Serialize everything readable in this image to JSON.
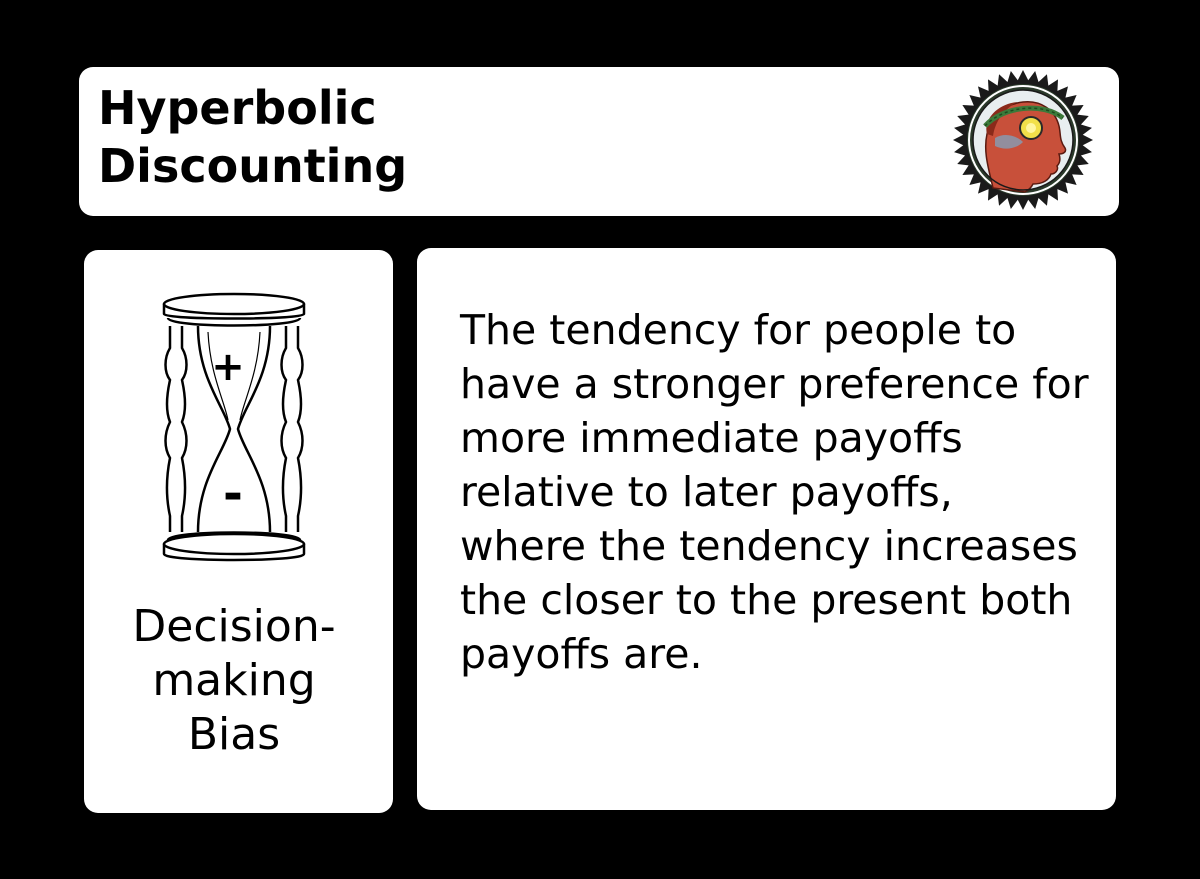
{
  "card": {
    "title_line1": "Hyperbolic",
    "title_line2": "Discounting",
    "category_line1": "Decision-",
    "category_line2": "making",
    "category_line3": "Bias",
    "description": "The tendency for people to have a stronger preference for more immediate payoffs relative to later payoffs, where the tendency increases the closer to the present both payoffs are."
  },
  "icons": {
    "logo": "laurel-head-seal-icon",
    "category": "hourglass-icon"
  },
  "hourglass_signs": {
    "top": "+",
    "bottom": "-"
  },
  "colors": {
    "background": "#000000",
    "panel": "#ffffff",
    "text": "#000000",
    "seal_head": "#c8503a",
    "seal_sun": "#f2e04a",
    "seal_laurel": "#3c7a3a"
  }
}
